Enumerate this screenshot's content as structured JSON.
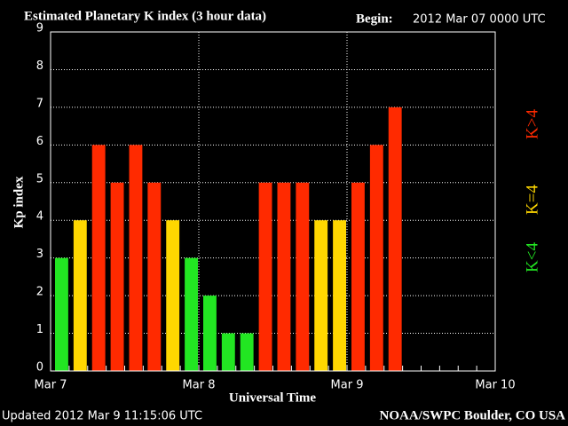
{
  "chart_data": {
    "type": "bar",
    "title": "Estimated Planetary K index (3 hour data)",
    "begin_label": "Begin:",
    "begin": "2012 Mar 07 0000 UTC",
    "y_label": "Kp index",
    "x_label": "Universal Time",
    "updated": "Updated 2012 Mar  9 11:15:06 UTC",
    "source": "NOAA/SWPC Boulder, CO USA",
    "x": [
      0,
      3,
      6,
      9,
      12,
      15,
      18,
      21,
      24,
      27,
      30,
      33,
      36,
      39,
      42,
      45,
      48,
      51,
      54
    ],
    "values": [
      3,
      4,
      6,
      5,
      6,
      5,
      4,
      3,
      2,
      1,
      1,
      5,
      5,
      5,
      4,
      4,
      5,
      6,
      7
    ],
    "bar_width": 3,
    "threshold": 4,
    "colors": {
      "below": "#22e622",
      "equal": "#ffd700",
      "above": "#ff2a00"
    },
    "legend": [
      {
        "label": "K<4",
        "color": "#22e622"
      },
      {
        "label": "K=4",
        "color": "#ffd700"
      },
      {
        "label": "K>4",
        "color": "#ff2a00"
      }
    ],
    "xlim": [
      0,
      72
    ],
    "xticks": [
      {
        "value": 0,
        "label": "Mar 7"
      },
      {
        "value": 24,
        "label": "Mar 8"
      },
      {
        "value": 48,
        "label": "Mar 9"
      },
      {
        "value": 72,
        "label": "Mar 10"
      }
    ],
    "ylim": [
      0,
      9
    ],
    "yticks": [
      0,
      1,
      2,
      3,
      4,
      5,
      6,
      7,
      8,
      9
    ],
    "grid": true
  }
}
